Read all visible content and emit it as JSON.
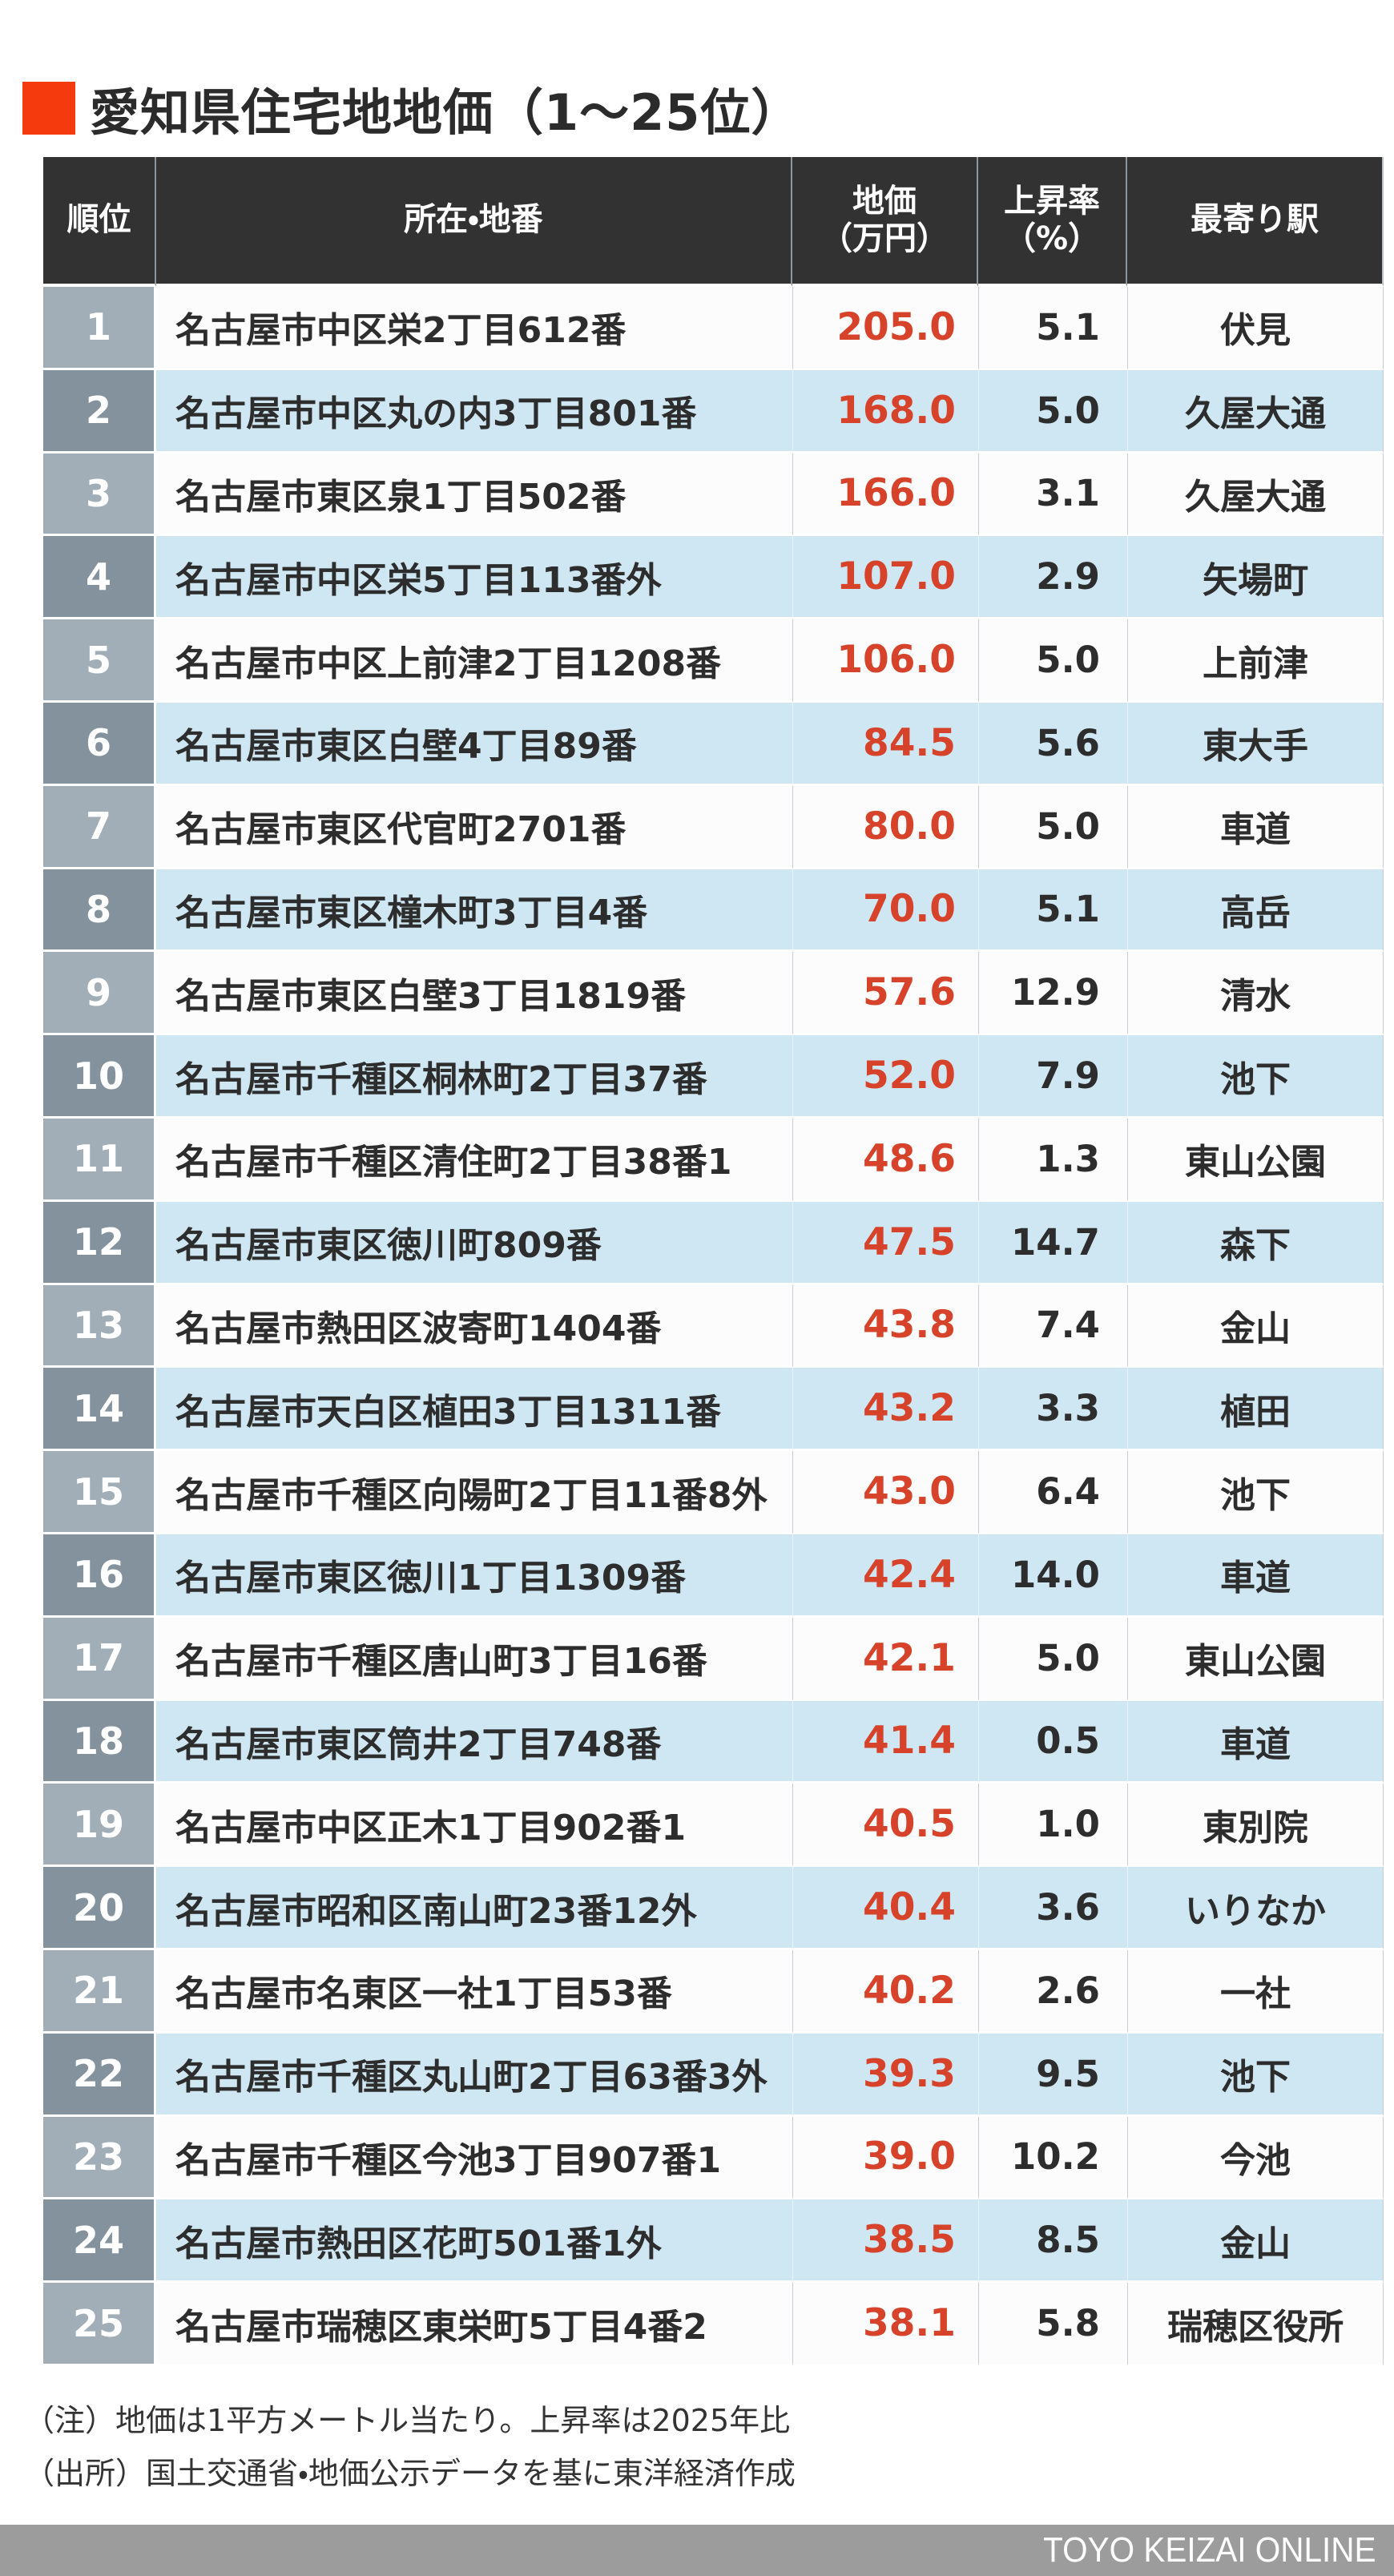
{
  "title": {
    "label": "愛知県住宅地地価（1～25位）",
    "accent_color": "#f53b0e"
  },
  "table": {
    "headers": {
      "rank": "順位",
      "location": "所在・地番",
      "price_line1": "地価",
      "price_line2": "（万円）",
      "rate_line1": "上昇率",
      "rate_line2": "（%）",
      "station": "最寄り駅"
    }
  },
  "chart_data": {
    "type": "table",
    "title": "愛知県住宅地地価（1～25位）",
    "columns": [
      "順位",
      "所在・地番",
      "地価（万円）",
      "上昇率（%）",
      "最寄り駅"
    ],
    "rows": [
      {
        "rank": "1",
        "location": "名古屋市中区栄2丁目612番",
        "price": "205.0",
        "rate": "5.1",
        "station": "伏見"
      },
      {
        "rank": "2",
        "location": "名古屋市中区丸の内3丁目801番",
        "price": "168.0",
        "rate": "5.0",
        "station": "久屋大通"
      },
      {
        "rank": "3",
        "location": "名古屋市東区泉1丁目502番",
        "price": "166.0",
        "rate": "3.1",
        "station": "久屋大通"
      },
      {
        "rank": "4",
        "location": "名古屋市中区栄5丁目113番外",
        "price": "107.0",
        "rate": "2.9",
        "station": "矢場町"
      },
      {
        "rank": "5",
        "location": "名古屋市中区上前津2丁目1208番",
        "price": "106.0",
        "rate": "5.0",
        "station": "上前津"
      },
      {
        "rank": "6",
        "location": "名古屋市東区白壁4丁目89番",
        "price": "84.5",
        "rate": "5.6",
        "station": "東大手"
      },
      {
        "rank": "7",
        "location": "名古屋市東区代官町2701番",
        "price": "80.0",
        "rate": "5.0",
        "station": "車道"
      },
      {
        "rank": "8",
        "location": "名古屋市東区橦木町3丁目4番",
        "price": "70.0",
        "rate": "5.1",
        "station": "高岳"
      },
      {
        "rank": "9",
        "location": "名古屋市東区白壁3丁目1819番",
        "price": "57.6",
        "rate": "12.9",
        "station": "清水"
      },
      {
        "rank": "10",
        "location": "名古屋市千種区桐林町2丁目37番",
        "price": "52.0",
        "rate": "7.9",
        "station": "池下"
      },
      {
        "rank": "11",
        "location": "名古屋市千種区清住町2丁目38番1",
        "price": "48.6",
        "rate": "1.3",
        "station": "東山公園"
      },
      {
        "rank": "12",
        "location": "名古屋市東区徳川町809番",
        "price": "47.5",
        "rate": "14.7",
        "station": "森下"
      },
      {
        "rank": "13",
        "location": "名古屋市熱田区波寄町1404番",
        "price": "43.8",
        "rate": "7.4",
        "station": "金山"
      },
      {
        "rank": "14",
        "location": "名古屋市天白区植田3丁目1311番",
        "price": "43.2",
        "rate": "3.3",
        "station": "植田"
      },
      {
        "rank": "15",
        "location": "名古屋市千種区向陽町2丁目11番8外",
        "price": "43.0",
        "rate": "6.4",
        "station": "池下"
      },
      {
        "rank": "16",
        "location": "名古屋市東区徳川1丁目1309番",
        "price": "42.4",
        "rate": "14.0",
        "station": "車道"
      },
      {
        "rank": "17",
        "location": "名古屋市千種区唐山町3丁目16番",
        "price": "42.1",
        "rate": "5.0",
        "station": "東山公園"
      },
      {
        "rank": "18",
        "location": "名古屋市東区筒井2丁目748番",
        "price": "41.4",
        "rate": "0.5",
        "station": "車道"
      },
      {
        "rank": "19",
        "location": "名古屋市中区正木1丁目902番1",
        "price": "40.5",
        "rate": "1.0",
        "station": "東別院"
      },
      {
        "rank": "20",
        "location": "名古屋市昭和区南山町23番12外",
        "price": "40.4",
        "rate": "3.6",
        "station": "いりなか"
      },
      {
        "rank": "21",
        "location": "名古屋市名東区一社1丁目53番",
        "price": "40.2",
        "rate": "2.6",
        "station": "一社"
      },
      {
        "rank": "22",
        "location": "名古屋市千種区丸山町2丁目63番3外",
        "price": "39.3",
        "rate": "9.5",
        "station": "池下"
      },
      {
        "rank": "23",
        "location": "名古屋市千種区今池3丁目907番1",
        "price": "39.0",
        "rate": "10.2",
        "station": "今池"
      },
      {
        "rank": "24",
        "location": "名古屋市熱田区花町501番1外",
        "price": "38.5",
        "rate": "8.5",
        "station": "金山"
      },
      {
        "rank": "25",
        "location": "名古屋市瑞穂区東栄町5丁目4番2",
        "price": "38.1",
        "rate": "5.8",
        "station": "瑞穂区役所"
      }
    ]
  },
  "notes": {
    "line1": "（注）地価は1平方メートル当たり。上昇率は2025年比",
    "line2": "（出所）国土交通省・地価公示データを基に東洋経済作成"
  },
  "footer": {
    "brand": "TOYO KEIZAI ONLINE",
    "bg_color": "#9c9c9c"
  },
  "colors": {
    "accent_orange": "#f53b0e",
    "header_bg": "#323232",
    "row_white": "#fcfcfc",
    "row_blue": "#cfe7f2",
    "rank_light": "#a1aeb7",
    "rank_dark": "#83929d",
    "price_red": "#d7432a",
    "grid_border": "#c9cdd1"
  }
}
